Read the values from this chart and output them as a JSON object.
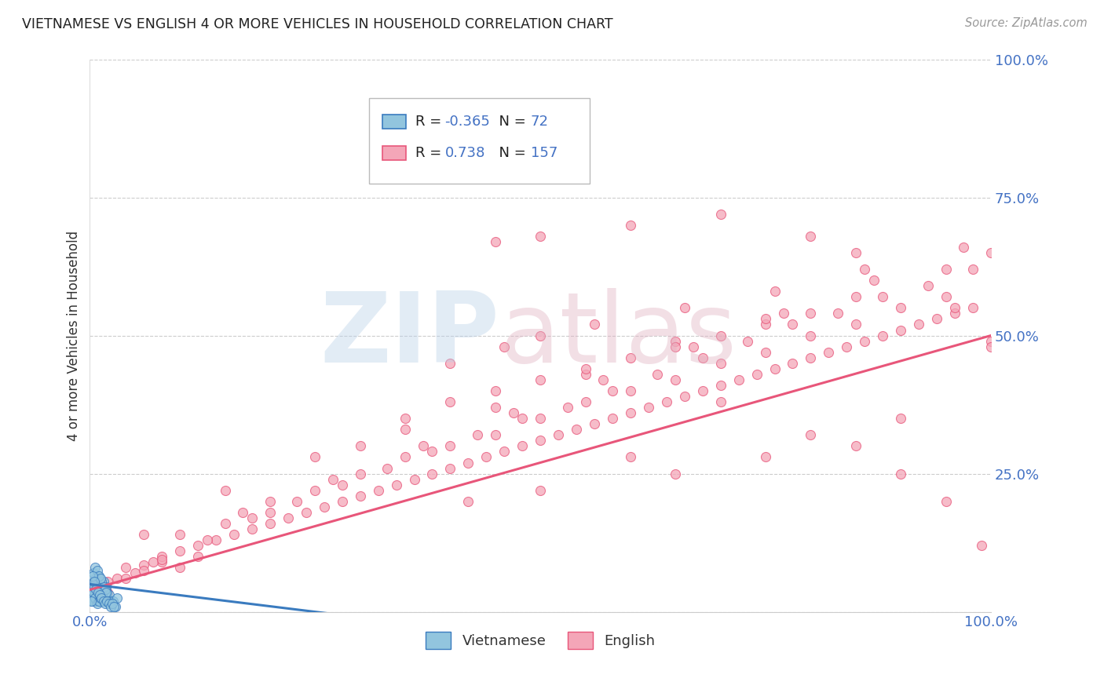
{
  "title": "VIETNAMESE VS ENGLISH 4 OR MORE VEHICLES IN HOUSEHOLD CORRELATION CHART",
  "source": "Source: ZipAtlas.com",
  "ylabel": "4 or more Vehicles in Household",
  "color_vietnamese": "#92c5de",
  "color_english": "#f4a6b8",
  "color_line_vietnamese": "#3a7bbf",
  "color_line_english": "#e8567a",
  "background_color": "#ffffff",
  "grid_color": "#cccccc",
  "title_color": "#222222",
  "tick_color": "#4472c4",
  "watermark_color_zip": "#b8d0e8",
  "watermark_color_atlas": "#e0b0c0",
  "vietnamese_points": [
    [
      0.2,
      2.5
    ],
    [
      0.3,
      3.0
    ],
    [
      0.4,
      4.0
    ],
    [
      0.5,
      5.0
    ],
    [
      0.5,
      2.0
    ],
    [
      0.6,
      3.5
    ],
    [
      0.6,
      6.0
    ],
    [
      0.7,
      4.5
    ],
    [
      0.7,
      2.0
    ],
    [
      0.8,
      5.5
    ],
    [
      0.8,
      3.0
    ],
    [
      0.9,
      4.0
    ],
    [
      0.9,
      2.5
    ],
    [
      1.0,
      6.0
    ],
    [
      1.0,
      3.5
    ],
    [
      1.1,
      4.5
    ],
    [
      1.1,
      2.0
    ],
    [
      1.2,
      5.0
    ],
    [
      1.2,
      3.0
    ],
    [
      1.3,
      4.0
    ],
    [
      1.3,
      2.5
    ],
    [
      1.4,
      3.5
    ],
    [
      1.5,
      5.5
    ],
    [
      1.5,
      2.0
    ],
    [
      1.6,
      4.0
    ],
    [
      1.7,
      3.0
    ],
    [
      1.8,
      4.5
    ],
    [
      1.9,
      3.5
    ],
    [
      2.0,
      2.5
    ],
    [
      2.1,
      3.0
    ],
    [
      0.1,
      3.0
    ],
    [
      0.2,
      5.0
    ],
    [
      0.3,
      2.0
    ],
    [
      0.4,
      3.5
    ],
    [
      0.5,
      4.5
    ],
    [
      0.6,
      2.5
    ],
    [
      0.7,
      5.5
    ],
    [
      0.8,
      1.5
    ],
    [
      0.9,
      6.5
    ],
    [
      1.0,
      2.0
    ],
    [
      1.1,
      4.0
    ],
    [
      1.2,
      2.5
    ],
    [
      1.3,
      5.5
    ],
    [
      1.4,
      3.0
    ],
    [
      1.5,
      4.5
    ],
    [
      1.6,
      2.0
    ],
    [
      1.7,
      4.0
    ],
    [
      1.8,
      3.5
    ],
    [
      2.2,
      2.0
    ],
    [
      2.4,
      1.5
    ],
    [
      2.6,
      2.0
    ],
    [
      2.8,
      1.0
    ],
    [
      3.0,
      2.5
    ],
    [
      0.4,
      7.0
    ],
    [
      0.6,
      8.0
    ],
    [
      0.8,
      7.5
    ],
    [
      1.0,
      6.5
    ],
    [
      1.2,
      6.0
    ],
    [
      0.3,
      6.5
    ],
    [
      0.5,
      5.5
    ],
    [
      0.7,
      4.0
    ],
    [
      0.9,
      3.5
    ],
    [
      1.1,
      3.0
    ],
    [
      1.3,
      2.5
    ],
    [
      1.5,
      2.0
    ],
    [
      1.7,
      1.5
    ],
    [
      1.9,
      2.0
    ],
    [
      2.1,
      1.5
    ],
    [
      2.3,
      1.0
    ],
    [
      2.5,
      1.5
    ],
    [
      2.7,
      1.0
    ],
    [
      0.1,
      2.0
    ]
  ],
  "english_points": [
    [
      2.0,
      5.5
    ],
    [
      4.0,
      8.0
    ],
    [
      6.0,
      8.5
    ],
    [
      8.0,
      9.0
    ],
    [
      10.0,
      11.0
    ],
    [
      12.0,
      12.0
    ],
    [
      14.0,
      13.0
    ],
    [
      16.0,
      14.0
    ],
    [
      18.0,
      15.0
    ],
    [
      20.0,
      16.0
    ],
    [
      22.0,
      17.0
    ],
    [
      24.0,
      18.0
    ],
    [
      26.0,
      19.0
    ],
    [
      28.0,
      20.0
    ],
    [
      30.0,
      21.0
    ],
    [
      32.0,
      22.0
    ],
    [
      34.0,
      23.0
    ],
    [
      36.0,
      24.0
    ],
    [
      38.0,
      25.0
    ],
    [
      40.0,
      26.0
    ],
    [
      42.0,
      27.0
    ],
    [
      44.0,
      28.0
    ],
    [
      46.0,
      29.0
    ],
    [
      48.0,
      30.0
    ],
    [
      50.0,
      31.0
    ],
    [
      52.0,
      32.0
    ],
    [
      54.0,
      33.0
    ],
    [
      56.0,
      34.0
    ],
    [
      58.0,
      35.0
    ],
    [
      60.0,
      36.0
    ],
    [
      62.0,
      37.0
    ],
    [
      64.0,
      38.0
    ],
    [
      66.0,
      39.0
    ],
    [
      68.0,
      40.0
    ],
    [
      70.0,
      41.0
    ],
    [
      72.0,
      42.0
    ],
    [
      74.0,
      43.0
    ],
    [
      76.0,
      44.0
    ],
    [
      78.0,
      45.0
    ],
    [
      80.0,
      46.0
    ],
    [
      82.0,
      47.0
    ],
    [
      84.0,
      48.0
    ],
    [
      86.0,
      49.0
    ],
    [
      88.0,
      50.0
    ],
    [
      90.0,
      51.0
    ],
    [
      92.0,
      52.0
    ],
    [
      94.0,
      53.0
    ],
    [
      96.0,
      54.0
    ],
    [
      98.0,
      55.0
    ],
    [
      100.0,
      49.0
    ],
    [
      5.0,
      7.0
    ],
    [
      10.0,
      14.0
    ],
    [
      15.0,
      16.0
    ],
    [
      20.0,
      20.0
    ],
    [
      25.0,
      22.0
    ],
    [
      30.0,
      25.0
    ],
    [
      35.0,
      28.0
    ],
    [
      40.0,
      30.0
    ],
    [
      45.0,
      32.0
    ],
    [
      50.0,
      35.0
    ],
    [
      55.0,
      38.0
    ],
    [
      60.0,
      40.0
    ],
    [
      65.0,
      42.0
    ],
    [
      70.0,
      45.0
    ],
    [
      75.0,
      47.0
    ],
    [
      80.0,
      50.0
    ],
    [
      85.0,
      52.0
    ],
    [
      90.0,
      55.0
    ],
    [
      95.0,
      57.0
    ],
    [
      100.0,
      65.0
    ],
    [
      3.0,
      6.0
    ],
    [
      8.0,
      10.0
    ],
    [
      13.0,
      13.0
    ],
    [
      18.0,
      17.0
    ],
    [
      23.0,
      20.0
    ],
    [
      28.0,
      23.0
    ],
    [
      33.0,
      26.0
    ],
    [
      38.0,
      29.0
    ],
    [
      43.0,
      32.0
    ],
    [
      48.0,
      35.0
    ],
    [
      53.0,
      37.0
    ],
    [
      58.0,
      40.0
    ],
    [
      63.0,
      43.0
    ],
    [
      68.0,
      46.0
    ],
    [
      73.0,
      49.0
    ],
    [
      78.0,
      52.0
    ],
    [
      83.0,
      54.0
    ],
    [
      88.0,
      57.0
    ],
    [
      93.0,
      59.0
    ],
    [
      98.0,
      62.0
    ],
    [
      7.0,
      9.0
    ],
    [
      17.0,
      18.0
    ],
    [
      27.0,
      24.0
    ],
    [
      37.0,
      30.0
    ],
    [
      47.0,
      36.0
    ],
    [
      57.0,
      42.0
    ],
    [
      67.0,
      48.0
    ],
    [
      77.0,
      54.0
    ],
    [
      87.0,
      60.0
    ],
    [
      97.0,
      66.0
    ],
    [
      15.0,
      22.0
    ],
    [
      25.0,
      28.0
    ],
    [
      35.0,
      33.0
    ],
    [
      45.0,
      37.0
    ],
    [
      55.0,
      43.0
    ],
    [
      65.0,
      49.0
    ],
    [
      75.0,
      52.0
    ],
    [
      85.0,
      57.0
    ],
    [
      95.0,
      62.0
    ],
    [
      50.0,
      68.0
    ],
    [
      60.0,
      70.0
    ],
    [
      70.0,
      72.0
    ],
    [
      80.0,
      68.0
    ],
    [
      90.0,
      25.0
    ],
    [
      40.0,
      45.0
    ],
    [
      50.0,
      50.0
    ],
    [
      45.0,
      67.0
    ],
    [
      85.0,
      65.0
    ],
    [
      95.0,
      20.0
    ],
    [
      99.0,
      12.0
    ],
    [
      30.0,
      30.0
    ],
    [
      20.0,
      18.0
    ],
    [
      10.0,
      8.0
    ],
    [
      6.0,
      14.0
    ],
    [
      46.0,
      48.0
    ],
    [
      56.0,
      52.0
    ],
    [
      66.0,
      55.0
    ],
    [
      76.0,
      58.0
    ],
    [
      86.0,
      62.0
    ],
    [
      96.0,
      55.0
    ],
    [
      40.0,
      38.0
    ],
    [
      50.0,
      42.0
    ],
    [
      60.0,
      46.0
    ],
    [
      70.0,
      50.0
    ],
    [
      80.0,
      54.0
    ],
    [
      35.0,
      35.0
    ],
    [
      45.0,
      40.0
    ],
    [
      55.0,
      44.0
    ],
    [
      65.0,
      48.0
    ],
    [
      75.0,
      53.0
    ],
    [
      2.0,
      3.5
    ],
    [
      4.0,
      6.0
    ],
    [
      6.0,
      7.5
    ],
    [
      8.0,
      9.5
    ],
    [
      12.0,
      10.0
    ],
    [
      90.0,
      35.0
    ],
    [
      80.0,
      32.0
    ],
    [
      70.0,
      38.0
    ],
    [
      60.0,
      28.0
    ],
    [
      50.0,
      22.0
    ],
    [
      85.0,
      30.0
    ],
    [
      75.0,
      28.0
    ],
    [
      65.0,
      25.0
    ],
    [
      100.0,
      48.0
    ],
    [
      42.0,
      20.0
    ]
  ],
  "eng_line_x0": 0,
  "eng_line_y0": 4,
  "eng_line_x1": 100,
  "eng_line_y1": 50,
  "viet_line_x0": 0,
  "viet_line_y0": 5,
  "viet_line_x1": 30,
  "viet_line_y1": -1,
  "xlim": [
    0,
    100
  ],
  "ylim": [
    0,
    100
  ]
}
